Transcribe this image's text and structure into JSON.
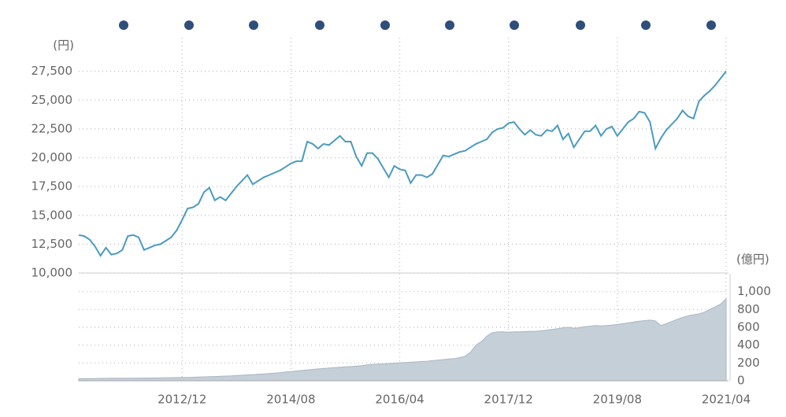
{
  "chart_data": {
    "type": "line",
    "y_unit": "(円)",
    "y2_unit": "(億円)",
    "categories": [
      null,
      null,
      null,
      null,
      null,
      null,
      null,
      null,
      null,
      null,
      null,
      null,
      null,
      null,
      null,
      null,
      null,
      null,
      null,
      "2012/12",
      null,
      null,
      null,
      null,
      null,
      null,
      null,
      null,
      null,
      null,
      null,
      null,
      null,
      null,
      null,
      null,
      null,
      null,
      null,
      "2014/08",
      null,
      null,
      null,
      null,
      null,
      null,
      null,
      null,
      null,
      null,
      null,
      null,
      null,
      null,
      null,
      null,
      null,
      null,
      null,
      "2016/04",
      null,
      null,
      null,
      null,
      null,
      null,
      null,
      null,
      null,
      null,
      null,
      null,
      null,
      null,
      null,
      null,
      null,
      null,
      null,
      "2017/12",
      null,
      null,
      null,
      null,
      null,
      null,
      null,
      null,
      null,
      null,
      null,
      null,
      null,
      null,
      null,
      null,
      null,
      null,
      null,
      "2019/08",
      null,
      null,
      null,
      null,
      null,
      null,
      null,
      null,
      null,
      null,
      null,
      null,
      null,
      null,
      null,
      null,
      null,
      null,
      null,
      "2021/04"
    ],
    "series": [
      {
        "color": "#4a9bbf",
        "values": [
          13300,
          13200,
          12900,
          12300,
          11500,
          12200,
          11600,
          11700,
          12000,
          13200,
          13300,
          13100,
          12000,
          12200,
          12400,
          12500,
          12800,
          13100,
          13700,
          14600,
          15600,
          15700,
          16000,
          17000,
          17400,
          16300,
          16600,
          16300,
          16900,
          17500,
          18000,
          18500,
          17700,
          18000,
          18300,
          18500,
          18700,
          18900,
          19200,
          19500,
          19700,
          19700,
          21400,
          21200,
          20800,
          21200,
          21100,
          21500,
          21900,
          21400,
          21400,
          20100,
          19300,
          20400,
          20400,
          19900,
          19100,
          18300,
          19300,
          19000,
          18900,
          17800,
          18500,
          18500,
          18300,
          18600,
          19400,
          20200,
          20100,
          20300,
          20500,
          20600,
          20900,
          21200,
          21400,
          21600,
          22200,
          22500,
          22600,
          23000,
          23100,
          22500,
          22000,
          22400,
          22000,
          21900,
          22400,
          22300,
          22800,
          21600,
          22100,
          20900,
          21600,
          22300,
          22300,
          22800,
          21900,
          22500,
          22700,
          21900,
          22500,
          23100,
          23400,
          24000,
          23900,
          23100,
          20800,
          21700,
          22400,
          22900,
          23400,
          24100,
          23600,
          23400,
          24900,
          25400,
          25800,
          26300,
          26900,
          27500
        ]
      },
      {
        "color": "#c5cfd8",
        "axis": "y2",
        "values": [
          25,
          25,
          26,
          26,
          27,
          27,
          28,
          28,
          29,
          29,
          30,
          30,
          31,
          31,
          32,
          33,
          34,
          35,
          36,
          37,
          38,
          40,
          42,
          44,
          46,
          48,
          50,
          53,
          56,
          60,
          63,
          66,
          70,
          74,
          78,
          82,
          86,
          92,
          98,
          104,
          110,
          116,
          122,
          128,
          133,
          138,
          143,
          148,
          152,
          156,
          160,
          164,
          170,
          178,
          184,
          188,
          190,
          194,
          198,
          202,
          205,
          208,
          212,
          216,
          220,
          226,
          232,
          238,
          244,
          248,
          260,
          275,
          320,
          400,
          440,
          500,
          540,
          548,
          550,
          545,
          550,
          550,
          552,
          555,
          556,
          560,
          568,
          575,
          585,
          595,
          600,
          590,
          596,
          608,
          612,
          620,
          615,
          620,
          625,
          632,
          640,
          650,
          660,
          668,
          675,
          680,
          672,
          620,
          640,
          665,
          690,
          710,
          730,
          740,
          750,
          770,
          800,
          830,
          860,
          920
        ]
      }
    ],
    "ylim": [
      10000,
      30000
    ],
    "yticks": [
      {
        "value": 10000,
        "label": "10,000"
      },
      {
        "value": 12500,
        "label": "12,500"
      },
      {
        "value": 15000,
        "label": "15,000"
      },
      {
        "value": 17500,
        "label": "17,500"
      },
      {
        "value": 20000,
        "label": "20,000"
      },
      {
        "value": 22500,
        "label": "22,500"
      },
      {
        "value": 25000,
        "label": "25,000"
      },
      {
        "value": 27500,
        "label": "27,500"
      }
    ],
    "y2lim": [
      0,
      1200
    ],
    "y2ticks": [
      0,
      200,
      400,
      600,
      800,
      {
        "value": 1000,
        "label": "1,000"
      }
    ],
    "grid": true
  }
}
